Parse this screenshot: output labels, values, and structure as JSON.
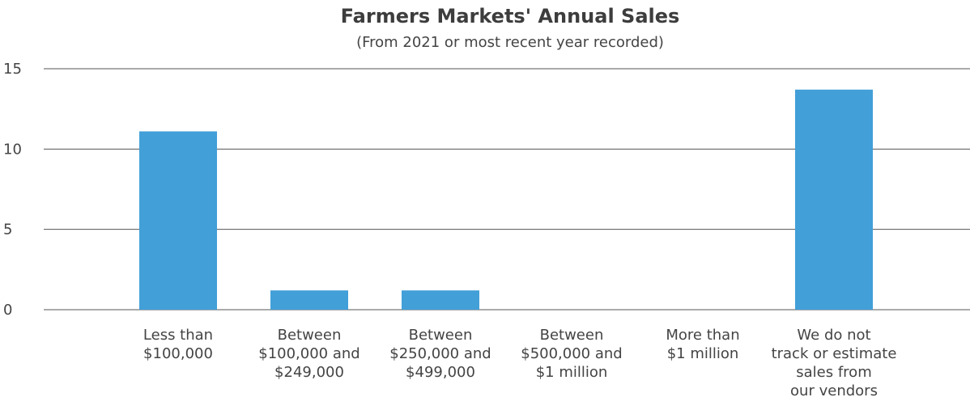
{
  "chart_data": {
    "type": "bar",
    "title": "Farmers Markets' Annual Sales",
    "subtitle": "(From 2021 or most recent year recorded)",
    "xlabel": "",
    "ylabel": "",
    "ylim": [
      0,
      15
    ],
    "yticks": [
      0,
      5,
      10,
      15
    ],
    "grid": true,
    "bar_color": "#429fd8",
    "categories": [
      [
        "Less than",
        "$100,000"
      ],
      [
        "Between",
        "$100,000 and",
        "$249,000"
      ],
      [
        "Between",
        "$250,000 and",
        "$499,000"
      ],
      [
        "Between",
        "$500,000 and",
        "$1 million"
      ],
      [
        "More than",
        "$1 million"
      ],
      [
        "We do not",
        "track or estimate",
        "sales from",
        "our vendors"
      ]
    ],
    "values": [
      11.1,
      1.2,
      1.2,
      0,
      0,
      13.7
    ]
  }
}
